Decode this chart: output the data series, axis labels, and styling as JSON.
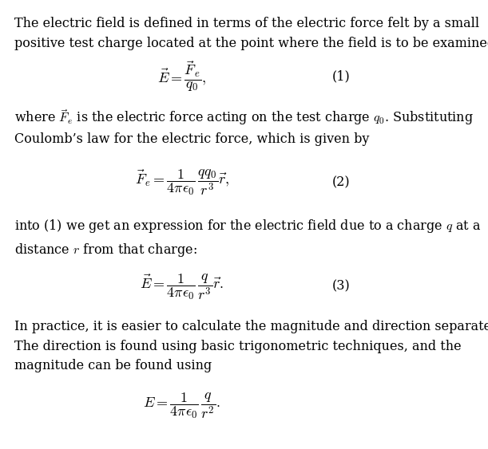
{
  "background_color": "#ffffff",
  "text_color": "#000000",
  "fig_width": 6.11,
  "fig_height": 5.63,
  "font_size": 11.5,
  "eq_font_size": 13,
  "paragraph1": "The electric field is defined in terms of the electric force felt by a small\npositive test charge located at the point where the field is to be examined:",
  "eq1": "$\\vec{E} = \\dfrac{\\vec{F}_e}{q_0},$",
  "eq1_number": "(1)",
  "paragraph2_part1": "where $\\vec{F}_e$ is the electric force acting on the test charge $q_0$. Substituting",
  "paragraph2_part2": "Coulomb’s law for the electric force, which is given by",
  "eq2": "$\\vec{F}_!e = \\dfrac{1}{4\\pi\\epsilon_0}\\,\\dfrac{qq_0}{r^3}\\vec{r},$",
  "eq2_number": "(2)",
  "paragraph3": "into (1) we get an expression for the electric field due to a charge $q$ at a\ndistance $r$ from that charge:",
  "eq3": "$\\vec{E} = \\dfrac{1}{4\\pi\\epsilon_0}\\,\\dfrac{q}{r^3}\\vec{r}.$",
  "eq3_number": "(3)",
  "paragraph4": "In practice, it is easier to calculate the magnitude and direction separately.\nThe direction is found using basic trigonometric techniques, and the\nmagnitude can be found using",
  "eq4": "$E = \\dfrac{1}{4\\pi\\epsilon_0}\\,\\dfrac{q}{r^2}.$"
}
